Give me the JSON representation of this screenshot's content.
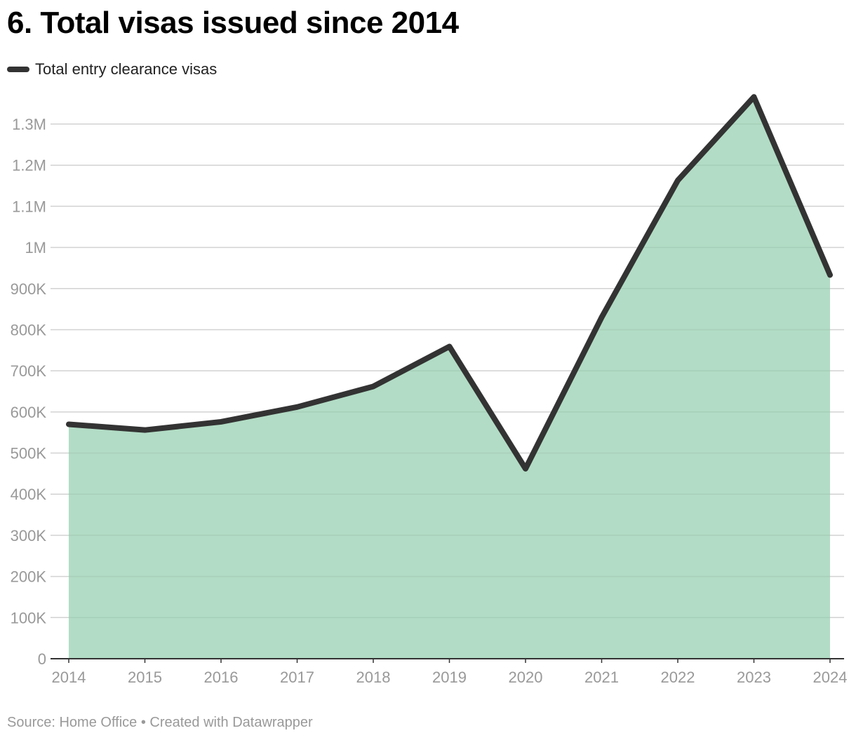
{
  "chart_data": {
    "type": "area",
    "title": "6. Total visas issued since 2014",
    "categories": [
      "2014",
      "2015",
      "2016",
      "2017",
      "2018",
      "2019",
      "2020",
      "2021",
      "2022",
      "2023",
      "2024"
    ],
    "series": [
      {
        "name": "Total entry clearance visas",
        "values": [
          570000,
          556000,
          576000,
          612000,
          662000,
          759000,
          462000,
          830000,
          1163000,
          1366000,
          933000
        ]
      }
    ],
    "yticks": [
      0,
      100000,
      200000,
      300000,
      400000,
      500000,
      600000,
      700000,
      800000,
      900000,
      1000000,
      1100000,
      1200000,
      1300000
    ],
    "ytick_labels": [
      "0",
      "100K",
      "200K",
      "300K",
      "400K",
      "500K",
      "600K",
      "700K",
      "800K",
      "900K",
      "1M",
      "1.1M",
      "1.2M",
      "1.3M"
    ],
    "ylim": [
      0,
      1300000
    ],
    "grid": true,
    "legend_position": "top-left",
    "source": "Source: Home Office • Created with Datawrapper",
    "colors": {
      "line": "#333333",
      "area": "#b2dcc5",
      "grid": "#e0e0e0",
      "axis": "#333333",
      "tick_text": "#999999"
    }
  }
}
